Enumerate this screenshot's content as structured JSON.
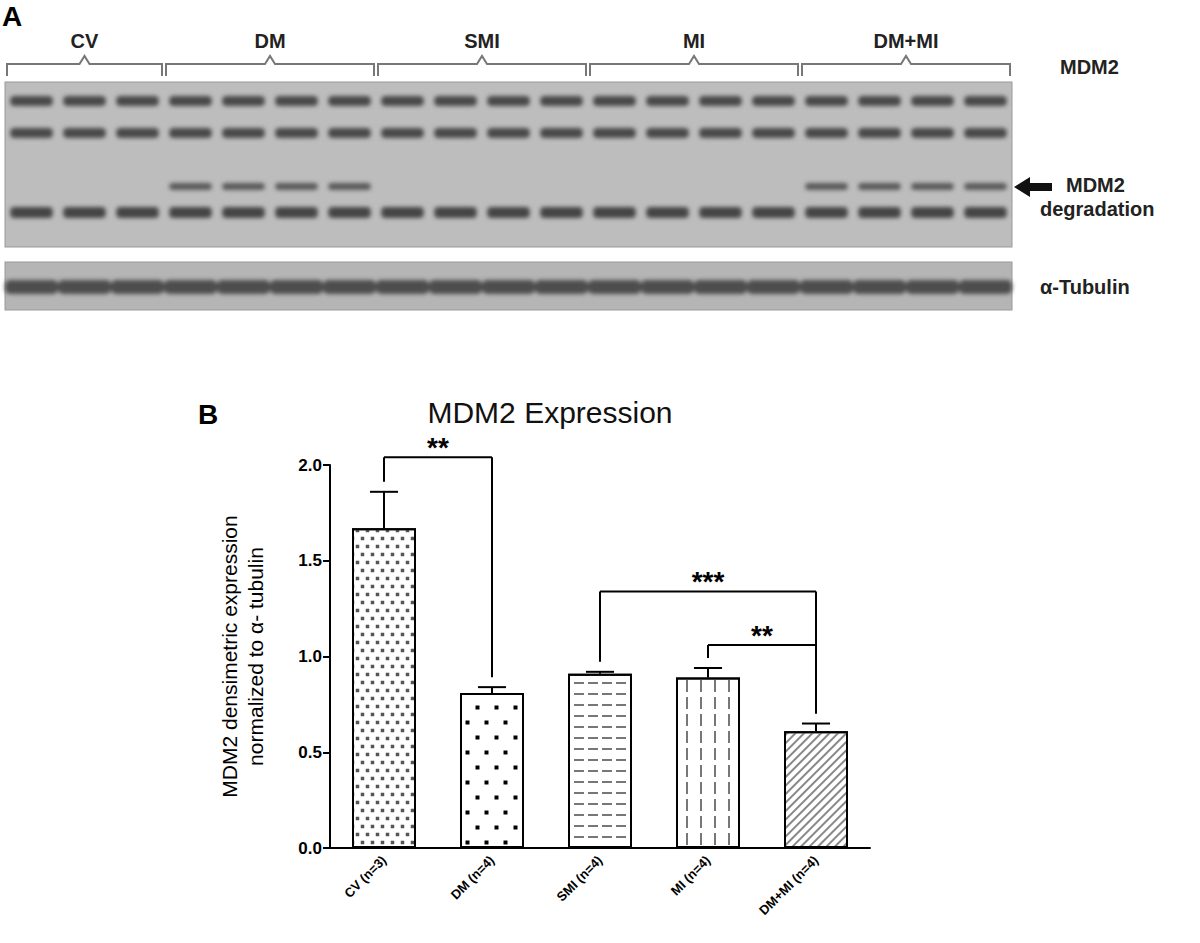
{
  "chart_data": {
    "type": "bar",
    "panel_label": "B",
    "title": "MDM2 Expression",
    "y_label": "MDM2 densimetric expression\nnormalized to α- tubulin",
    "categories": [
      "CV (n=3)",
      "DM (n=4)",
      "SMI (n=4)",
      "MI (n=4)",
      "DM+MI (n=4)"
    ],
    "values": [
      1.67,
      0.81,
      0.91,
      0.89,
      0.61
    ],
    "errors": [
      0.19,
      0.03,
      0.01,
      0.05,
      0.04
    ],
    "color": "#ffffff",
    "ylim": [
      0,
      2
    ],
    "yticks": [
      {
        "value": 0,
        "label": "0.0"
      },
      {
        "value": 0.5,
        "label": "0.5"
      },
      {
        "value": 1,
        "label": "1.0"
      },
      {
        "value": 1.5,
        "label": "1.5"
      },
      {
        "value": 2,
        "label": "2.0"
      }
    ],
    "grid": false,
    "significance": [
      {
        "from": "CV (n=3)",
        "to": "DM (n=4)",
        "label": "**",
        "y": 2.04
      },
      {
        "from": "SMI (n=4)",
        "to": "DM+MI (n=4)",
        "label": "***",
        "y": 1.34
      },
      {
        "from": "MI (n=4)",
        "to": "DM+MI (n=4)",
        "label": "**",
        "y": 1.06
      }
    ]
  },
  "blot": {
    "panel_label": "A",
    "groups": [
      {
        "name": "CV",
        "lanes": 3,
        "degradation": false
      },
      {
        "name": "DM",
        "lanes": 4,
        "degradation": true
      },
      {
        "name": "SMI",
        "lanes": 4,
        "degradation": false
      },
      {
        "name": "MI",
        "lanes": 4,
        "degradation": false
      },
      {
        "name": "DM+MI",
        "lanes": 4,
        "degradation": true
      }
    ],
    "band_label": "MDM2",
    "degradation_label": "MDM2\ndegradation",
    "loading_control": "α-Tubulin"
  }
}
